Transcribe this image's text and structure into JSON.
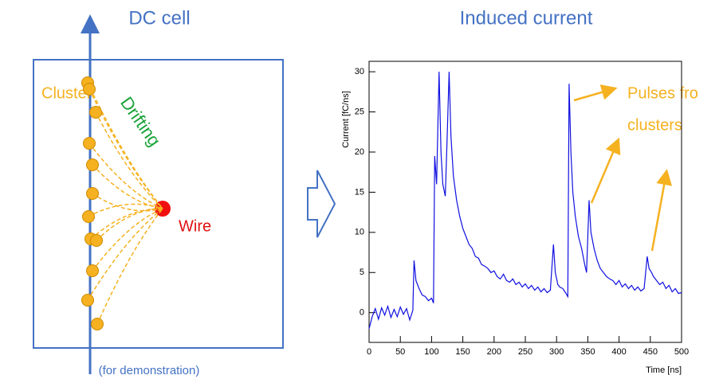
{
  "diagram": {
    "title": "DC cell",
    "cluster_label": "Cluster",
    "drift_label": "Drifting",
    "wire_label": "Wire",
    "note": "(for demonstration)"
  },
  "chart_data": {
    "type": "line",
    "title": "Induced current",
    "x_label": "Time [ns]",
    "y_label": "Current [fC/ns]",
    "annotation": [
      "Pulses fro",
      "clusters"
    ],
    "xlim": [
      0,
      500
    ],
    "ylim": [
      -3.7,
      31.3
    ],
    "xticks": [
      0,
      50,
      100,
      150,
      200,
      250,
      300,
      350,
      400,
      450,
      500
    ],
    "yticks": [
      0,
      5,
      10,
      15,
      20,
      25,
      30
    ],
    "x": [
      0,
      5,
      10,
      15,
      20,
      25,
      30,
      35,
      40,
      45,
      50,
      55,
      60,
      65,
      70,
      72,
      75,
      80,
      85,
      90,
      95,
      100,
      103,
      105,
      108,
      112,
      115,
      118,
      122,
      125,
      128,
      131,
      135,
      140,
      145,
      150,
      155,
      160,
      165,
      170,
      175,
      180,
      185,
      190,
      195,
      200,
      205,
      210,
      215,
      220,
      225,
      230,
      235,
      240,
      245,
      250,
      255,
      260,
      265,
      270,
      275,
      280,
      285,
      290,
      295,
      298,
      302,
      305,
      310,
      315,
      318,
      320,
      323,
      326,
      330,
      335,
      340,
      345,
      348,
      352,
      355,
      360,
      365,
      370,
      375,
      380,
      385,
      390,
      395,
      400,
      405,
      410,
      415,
      420,
      425,
      430,
      435,
      440,
      445,
      448,
      452,
      455,
      460,
      465,
      470,
      475,
      480,
      485,
      490,
      495,
      500
    ],
    "series": [
      {
        "name": "Current",
        "color": "#1010e0",
        "values": [
          -2,
          -0.5,
          0.5,
          -0.8,
          0.6,
          -0.3,
          0.8,
          -0.6,
          0.4,
          -0.5,
          0.7,
          -0.2,
          0.5,
          -0.9,
          0.3,
          6.5,
          4,
          3,
          2.2,
          2,
          1.5,
          1.8,
          1.2,
          19.5,
          16,
          30,
          20,
          16,
          14.5,
          22,
          30,
          22,
          17,
          14,
          12,
          10.5,
          9.5,
          8.5,
          8,
          7,
          6.8,
          6,
          5.8,
          5.5,
          5,
          5.2,
          4.5,
          4.2,
          4.8,
          4,
          3.8,
          4.2,
          3.5,
          3.8,
          3.2,
          3.6,
          3,
          3.4,
          2.8,
          3.2,
          2.6,
          3,
          2.5,
          2.8,
          8.5,
          5,
          3.5,
          3.2,
          3,
          2.4,
          2,
          28.5,
          20,
          15,
          12,
          9.5,
          8,
          6,
          5,
          14,
          10,
          8,
          6.5,
          5.5,
          5,
          4.5,
          4.2,
          4,
          3.5,
          4,
          3.2,
          3.6,
          3,
          3.4,
          2.8,
          3.2,
          2.7,
          3,
          7,
          5.5,
          5,
          4.5,
          4,
          3.5,
          3.8,
          3,
          3.4,
          2.6,
          3,
          2.4,
          2.5
        ]
      }
    ]
  }
}
